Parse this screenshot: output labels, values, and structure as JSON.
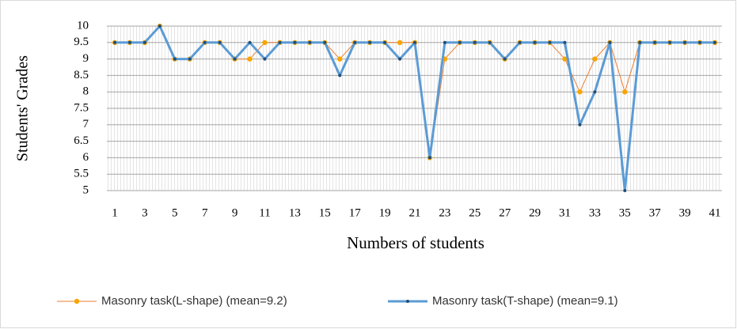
{
  "chart_data": {
    "type": "line",
    "x_label": "Numbers of students",
    "y_label": "Students' Grades",
    "categories": [
      1,
      null,
      3,
      null,
      5,
      null,
      7,
      null,
      9,
      null,
      11,
      null,
      13,
      null,
      15,
      null,
      17,
      null,
      19,
      null,
      21,
      null,
      23,
      null,
      25,
      null,
      27,
      null,
      29,
      null,
      31,
      null,
      33,
      null,
      35,
      null,
      37,
      null,
      39,
      null,
      41
    ],
    "series": [
      {
        "name": "Masonry task(L-shape) (mean=9.2)",
        "color": "#f7a500",
        "values": [
          9.5,
          9.5,
          9.5,
          10,
          9,
          9,
          9.5,
          9.5,
          9,
          9,
          9.5,
          9.5,
          9.5,
          9.5,
          9.5,
          9,
          9.5,
          9.5,
          9.5,
          9.5,
          9.5,
          6,
          9,
          9.5,
          9.5,
          9.5,
          9,
          9.5,
          9.5,
          9.5,
          9,
          8,
          9,
          9.5,
          8,
          9.5,
          9.5,
          9.5,
          9.5,
          9.5,
          9.5
        ]
      },
      {
        "name": "Masonry task(T-shape) (mean=9.1)",
        "color": "#5b9bd5",
        "values": [
          9.5,
          9.5,
          9.5,
          10,
          9,
          9,
          9.5,
          9.5,
          9,
          9.5,
          9,
          9.5,
          9.5,
          9.5,
          9.5,
          8.5,
          9.5,
          9.5,
          9.5,
          9,
          9.5,
          6,
          9.5,
          9.5,
          9.5,
          9.5,
          9,
          9.5,
          9.5,
          9.5,
          9.5,
          7,
          8,
          9.5,
          5,
          9.5,
          9.5,
          9.5,
          9.5,
          9.5,
          9.5
        ]
      }
    ],
    "ylim": [
      5,
      10
    ],
    "yticks": [
      5,
      5.5,
      6,
      6.5,
      7,
      7.5,
      8,
      8.5,
      9,
      9.5,
      10
    ],
    "grid": true,
    "legend": "bottom"
  }
}
